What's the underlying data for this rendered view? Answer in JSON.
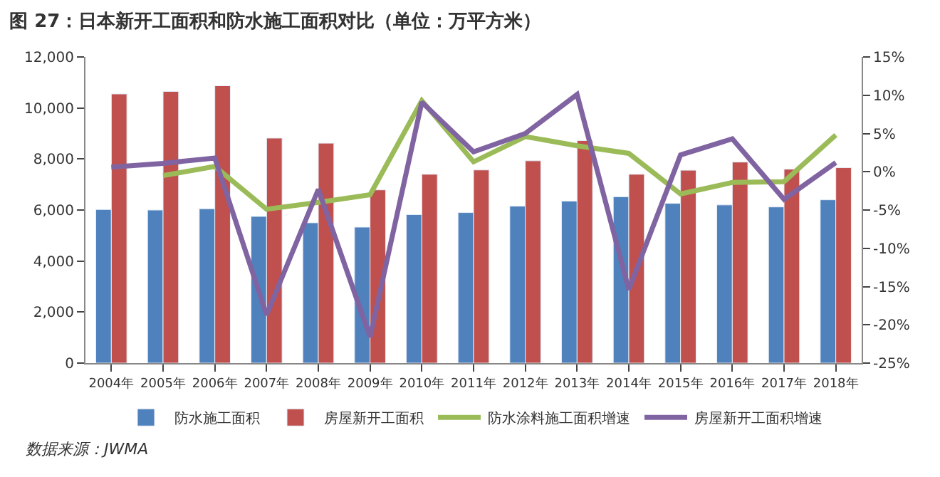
{
  "chart_data": {
    "type": "bar",
    "title": "图 27：日本新开工面积和防水施工面积对比（单位：万平方米）",
    "categories": [
      "2004年",
      "2005年",
      "2006年",
      "2007年",
      "2008年",
      "2009年",
      "2010年",
      "2011年",
      "2012年",
      "2013年",
      "2014年",
      "2015年",
      "2016年",
      "2017年",
      "2018年"
    ],
    "series": [
      {
        "name": "防水施工面积",
        "color": "#4f81bd",
        "values": [
          6020,
          6000,
          6050,
          5750,
          5500,
          5330,
          5820,
          5900,
          6150,
          6350,
          6520,
          6260,
          6200,
          6120,
          6400
        ]
      },
      {
        "name": "房屋新开工面积",
        "color": "#c0504d",
        "values": [
          10550,
          10650,
          10870,
          8820,
          8620,
          6790,
          7400,
          7570,
          7930,
          8720,
          7400,
          7560,
          7880,
          7600,
          7660
        ]
      },
      {
        "name": "防水涂料施工面积增速",
        "type": "line",
        "axis": "y2",
        "color": "#9bbb59",
        "values": [
          null,
          -0.5,
          0.7,
          -4.9,
          -4.0,
          -3.0,
          9.3,
          1.3,
          4.6,
          3.4,
          2.4,
          -2.9,
          -1.4,
          -1.3,
          4.8
        ]
      },
      {
        "name": "房屋新开工面积增速",
        "type": "line",
        "axis": "y2",
        "color": "#8064a2",
        "values": [
          0.6,
          1.1,
          1.8,
          -18.7,
          -2.3,
          -21.6,
          9.1,
          2.6,
          5.0,
          10.1,
          -15.4,
          2.2,
          4.3,
          -3.6,
          1.2
        ]
      }
    ],
    "ylim": [
      0,
      12000
    ],
    "yticks": [
      {
        "value": 0,
        "label": "0"
      },
      {
        "value": 2000,
        "label": "2,000"
      },
      {
        "value": 4000,
        "label": "4,000"
      },
      {
        "value": 6000,
        "label": "6,000"
      },
      {
        "value": 8000,
        "label": "8,000"
      },
      {
        "value": 10000,
        "label": "10,000"
      },
      {
        "value": 12000,
        "label": "12,000"
      }
    ],
    "y2lim": [
      -25,
      15
    ],
    "y2ticks": [
      {
        "value": -25,
        "label": "-25%"
      },
      {
        "value": -20,
        "label": "-20%"
      },
      {
        "value": -15,
        "label": "-15%"
      },
      {
        "value": -10,
        "label": "-10%"
      },
      {
        "value": -5,
        "label": "-5%"
      },
      {
        "value": 0,
        "label": "0%"
      },
      {
        "value": 5,
        "label": "5%"
      },
      {
        "value": 10,
        "label": "10%"
      },
      {
        "value": 15,
        "label": "15%"
      }
    ],
    "legend": "bottom",
    "marker": "none",
    "annotations": [
      "数据来源：JWMA"
    ]
  }
}
